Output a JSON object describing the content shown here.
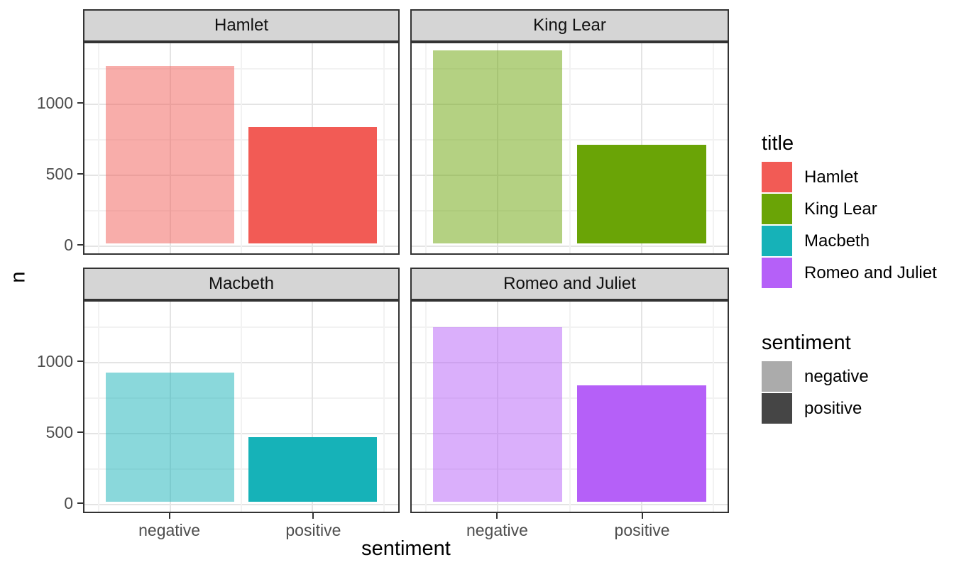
{
  "figure": {
    "x_axis_title": "sentiment",
    "y_axis_title": "n",
    "x_categories": [
      "negative",
      "positive"
    ],
    "y_ticks": [
      0,
      500,
      1000
    ]
  },
  "chart_data": {
    "type": "bar",
    "title": "",
    "xlabel": "sentiment",
    "ylabel": "n",
    "faceting": "2x2 grid by play title",
    "categories": [
      "negative",
      "positive"
    ],
    "facets": [
      {
        "title": "Hamlet",
        "color": "#F25B55",
        "values": {
          "negative": 1250,
          "positive": 820
        }
      },
      {
        "title": "King Lear",
        "color": "#6AA406",
        "values": {
          "negative": 1360,
          "positive": 695
        }
      },
      {
        "title": "Macbeth",
        "color": "#16B2B8",
        "values": {
          "negative": 910,
          "positive": 455
        }
      },
      {
        "title": "Romeo and Juliet",
        "color": "#B560F8",
        "values": {
          "negative": 1230,
          "positive": 820
        }
      }
    ],
    "negative_bar_opacity": 0.5,
    "ylim": [
      0,
      1430
    ],
    "y_major_gridlines": [
      0,
      500,
      1000
    ],
    "y_minor_gridlines": [
      250,
      750,
      1250
    ],
    "grid": true,
    "legend_position": "right"
  },
  "legend": {
    "title_legend": {
      "title": "title",
      "items": [
        {
          "label": "Hamlet",
          "color": "#F25B55"
        },
        {
          "label": "King Lear",
          "color": "#6AA406"
        },
        {
          "label": "Macbeth",
          "color": "#16B2B8"
        },
        {
          "label": "Romeo and Juliet",
          "color": "#B560F8"
        }
      ]
    },
    "sentiment_legend": {
      "title": "sentiment",
      "items": [
        {
          "label": "negative",
          "color": "#ABABAB"
        },
        {
          "label": "positive",
          "color": "#454545"
        }
      ]
    }
  },
  "colors": {
    "strip_fill": "#D5D5D5",
    "panel_border": "#333333",
    "major_gridline": "#E4E4E4",
    "minor_gridline": "#F2F2F2",
    "axis_text": "#4D4D4D",
    "title_text": "#000000",
    "background": "#FFFFFF"
  }
}
